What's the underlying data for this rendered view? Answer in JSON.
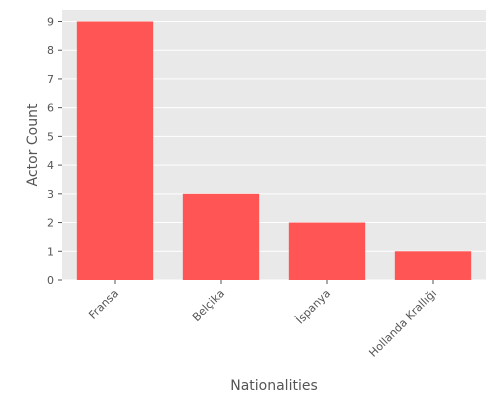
{
  "chart_data": {
    "type": "bar",
    "categories": [
      "Fransa",
      "Belçika",
      "İspanya",
      "Hollanda Krallığı"
    ],
    "values": [
      9,
      3,
      2,
      1
    ],
    "title": "",
    "xlabel": "Nationalities",
    "ylabel": "Actor Count",
    "ylim": [
      0,
      9.4
    ],
    "yticks": [
      0,
      1,
      2,
      3,
      4,
      5,
      6,
      7,
      8,
      9
    ],
    "grid": true,
    "bar_color": "#ff5555",
    "plot_background": "#e9e9e9",
    "grid_color": "#ffffff"
  }
}
